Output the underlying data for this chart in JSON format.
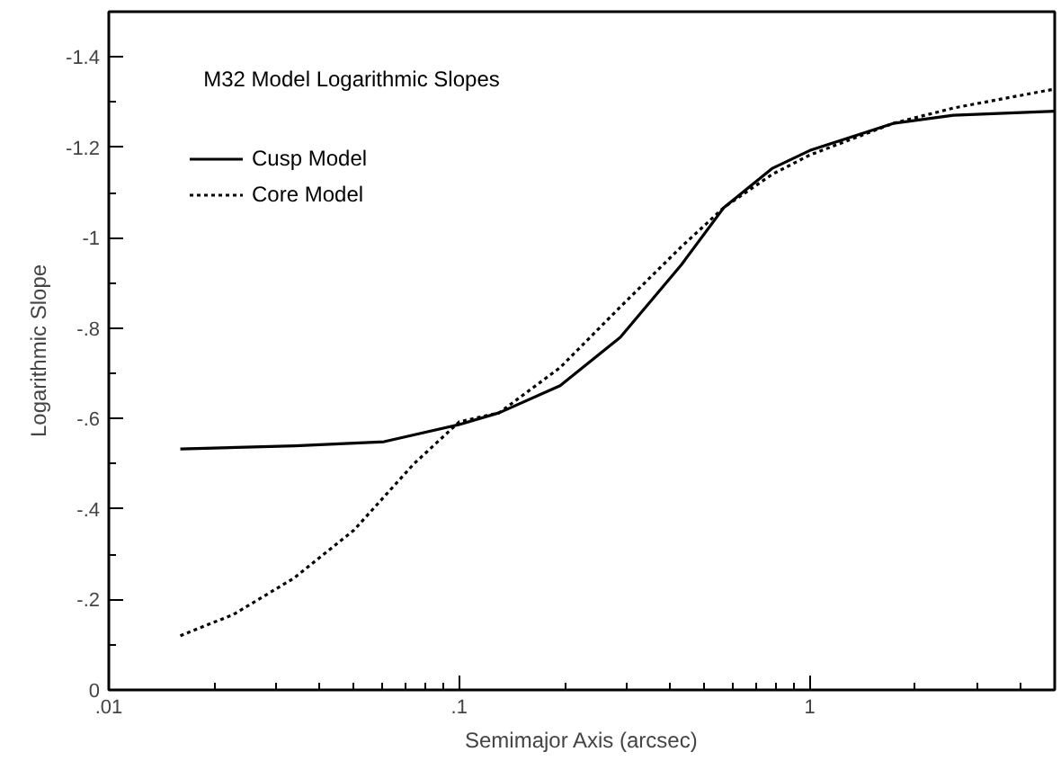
{
  "chart_data": {
    "type": "line",
    "title": "M32 Model Logarithmic Slopes",
    "xlabel": "Semimajor Axis (arcsec)",
    "ylabel": "Logarithmic Slope",
    "log": "x",
    "grid": false,
    "legend": "top left",
    "xlim": [
      0.01,
      5
    ],
    "xticks": [
      {
        "value": 0.01,
        "label": ".01"
      },
      {
        "value": 0.1,
        "label": ".1"
      },
      1
    ],
    "ylim": [
      0,
      -1.5
    ],
    "yticks": [
      0,
      {
        "value": -0.2,
        "label": "-.2"
      },
      {
        "value": -0.4,
        "label": "-.4"
      },
      {
        "value": -0.6,
        "label": "-.6"
      },
      {
        "value": -0.8,
        "label": "-.8"
      },
      -1,
      -1.2,
      -1.4
    ],
    "series": [
      {
        "name": "Cusp Model",
        "color": "#000000",
        "line_style": "solid",
        "x": [
          0.016,
          0.034,
          0.061,
          0.1,
          0.13,
          0.194,
          0.288,
          0.43,
          0.569,
          0.78,
          1,
          1.73,
          2.57,
          5
        ],
        "values": [
          -0.533,
          -0.54,
          -0.549,
          -0.587,
          -0.613,
          -0.673,
          -0.78,
          -0.94,
          -1.067,
          -1.153,
          -1.193,
          -1.253,
          -1.271,
          -1.28
        ]
      },
      {
        "name": "Core Model",
        "color": "#000000",
        "line_style": "dotted",
        "x": [
          0.016,
          0.0227,
          0.0337,
          0.05,
          0.0742,
          0.1,
          0.13,
          0.194,
          0.288,
          0.43,
          0.569,
          0.78,
          1,
          1.73,
          2.57,
          5
        ],
        "values": [
          -0.12,
          -0.167,
          -0.247,
          -0.353,
          -0.5,
          -0.593,
          -0.613,
          -0.713,
          -0.847,
          -0.98,
          -1.067,
          -1.14,
          -1.183,
          -1.253,
          -1.287,
          -1.329
        ]
      }
    ]
  }
}
